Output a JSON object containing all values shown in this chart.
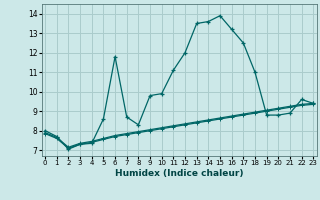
{
  "title": "",
  "xlabel": "Humidex (Indice chaleur)",
  "background_color": "#cce8e8",
  "grid_color": "#aacccc",
  "line_color": "#006666",
  "x_ticks": [
    0,
    1,
    2,
    3,
    4,
    5,
    6,
    7,
    8,
    9,
    10,
    11,
    12,
    13,
    14,
    15,
    16,
    17,
    18,
    19,
    20,
    21,
    22,
    23
  ],
  "y_ticks": [
    7,
    8,
    9,
    10,
    11,
    12,
    13,
    14
  ],
  "xlim": [
    -0.3,
    23.3
  ],
  "ylim": [
    6.7,
    14.5
  ],
  "series1_x": [
    0,
    1,
    2,
    3,
    4,
    5,
    6,
    7,
    8,
    9,
    10,
    11,
    12,
    13,
    14,
    15,
    16,
    17,
    18,
    19,
    20,
    21,
    22,
    23
  ],
  "series1_y": [
    8.0,
    7.7,
    7.05,
    7.3,
    7.35,
    8.6,
    11.8,
    8.7,
    8.3,
    9.8,
    9.9,
    11.1,
    12.0,
    13.5,
    13.6,
    13.9,
    13.2,
    12.5,
    11.0,
    8.8,
    8.8,
    8.9,
    9.6,
    9.4
  ],
  "series2_x": [
    0,
    1,
    2,
    3,
    4,
    5,
    6,
    7,
    8,
    9,
    10,
    11,
    12,
    13,
    14,
    15,
    16,
    17,
    18,
    19,
    20,
    21,
    22,
    23
  ],
  "series2_y": [
    7.9,
    7.65,
    7.15,
    7.35,
    7.45,
    7.6,
    7.75,
    7.85,
    7.95,
    8.05,
    8.15,
    8.25,
    8.35,
    8.45,
    8.55,
    8.65,
    8.75,
    8.85,
    8.95,
    9.05,
    9.15,
    9.25,
    9.35,
    9.4
  ],
  "series3_x": [
    0,
    1,
    2,
    3,
    4,
    5,
    6,
    7,
    8,
    9,
    10,
    11,
    12,
    13,
    14,
    15,
    16,
    17,
    18,
    19,
    20,
    21,
    22,
    23
  ],
  "series3_y": [
    7.85,
    7.6,
    7.1,
    7.3,
    7.4,
    7.55,
    7.7,
    7.8,
    7.9,
    8.0,
    8.1,
    8.2,
    8.3,
    8.4,
    8.5,
    8.6,
    8.7,
    8.8,
    8.9,
    9.0,
    9.1,
    9.2,
    9.3,
    9.35
  ]
}
